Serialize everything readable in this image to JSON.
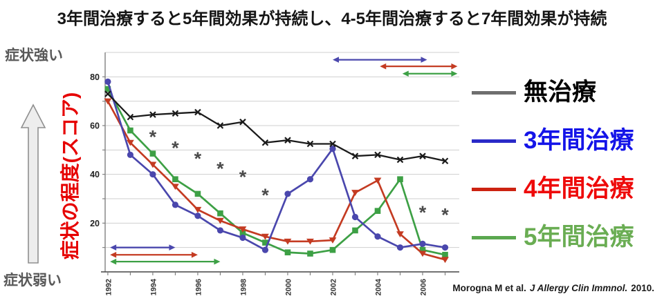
{
  "title": "3年間治療すると5年間効果が持続し、4-5年間治療すると7年間効果が持続",
  "y_axis_annotation": {
    "top": "症状強い",
    "bottom": "症状弱い",
    "label": "症状の程度(スコア)",
    "label_color": "#e60000"
  },
  "legend": {
    "items": [
      {
        "label": "無治療",
        "text_color": "#000000",
        "line_color": "#6e6e6e"
      },
      {
        "label": "3年間治療",
        "text_color": "#1414e8",
        "line_color": "#2a2ac8"
      },
      {
        "label": "4年間治療",
        "text_color": "#ee0a0a",
        "line_color": "#cc2211"
      },
      {
        "label": "5年間治療",
        "text_color": "#6aad53",
        "line_color": "#5aa84f"
      }
    ]
  },
  "citation": {
    "authors": "Morogna M et al.",
    "journal": "J Allergy Clin Immnol.",
    "year": "2010."
  },
  "chart_data": {
    "type": "line",
    "x": [
      1992,
      1993,
      1994,
      1995,
      1996,
      1997,
      1998,
      1999,
      2000,
      2001,
      2002,
      2003,
      2004,
      2005,
      2006,
      2007
    ],
    "x_labeled_ticks": [
      1992,
      1994,
      1996,
      1998,
      2000,
      2002,
      2004,
      2006
    ],
    "ylim": [
      0,
      90
    ],
    "y_tick_labels": [
      20,
      40,
      60,
      80
    ],
    "gridline_step": 10,
    "grid_color": "#cfcfcf",
    "series": [
      {
        "id": "no-treatment",
        "name": "無治療",
        "color": "#1a1a1a",
        "marker": "x",
        "values": [
          73,
          63.5,
          64.5,
          65,
          65.5,
          60,
          61.5,
          53,
          54,
          52.5,
          52.5,
          47.5,
          48,
          46,
          47.5,
          45.5
        ]
      },
      {
        "id": "treat-3yr",
        "name": "3年間治療",
        "color": "#4a47ad",
        "marker": "circle",
        "values": [
          78,
          48,
          40,
          27.5,
          23,
          17,
          14,
          9,
          32,
          38,
          50.5,
          22.5,
          14.5,
          10,
          11.5,
          10
        ]
      },
      {
        "id": "treat-4yr",
        "name": "4年間治療",
        "color": "#c43b22",
        "marker": "triangle-down",
        "values": [
          70,
          53,
          44,
          35,
          25.5,
          21,
          17.5,
          14.5,
          12.5,
          12.5,
          13,
          32.5,
          37.5,
          15.5,
          7.5,
          5
        ]
      },
      {
        "id": "treat-5yr",
        "name": "5年間治療",
        "color": "#3da045",
        "marker": "square",
        "values": [
          75,
          58,
          48.5,
          38,
          32,
          24,
          16,
          12,
          8,
          7.5,
          9,
          17,
          25,
          38,
          9,
          7
        ]
      }
    ],
    "significance_asterisks": [
      {
        "x": 1994,
        "y": 56.5
      },
      {
        "x": 1995,
        "y": 52
      },
      {
        "x": 1996,
        "y": 47.5
      },
      {
        "x": 1997,
        "y": 43.5
      },
      {
        "x": 1998,
        "y": 40
      },
      {
        "x": 1999,
        "y": 32.5
      },
      {
        "x": 2006,
        "y": 25.5
      },
      {
        "x": 2007,
        "y": 24.5
      }
    ],
    "treatment_duration_arrows": [
      {
        "series": "3年間治療",
        "color": "#4a47ad",
        "x1": 1992.1,
        "x2": 1995,
        "y": 10
      },
      {
        "series": "4年間治療",
        "color": "#c43b22",
        "x1": 1992.1,
        "x2": 1996,
        "y": 7
      },
      {
        "series": "5年間治療",
        "color": "#3da045",
        "x1": 1992.1,
        "x2": 1997,
        "y": 4.2
      }
    ],
    "effect_persistence_arrows": [
      {
        "series": "3年間治療",
        "color": "#4a47ad",
        "x1": 2002,
        "x2": 2006.2,
        "y": 87
      },
      {
        "series": "4年間治療",
        "color": "#c43b22",
        "x1": 2004.1,
        "x2": 2007.55,
        "y": 84.3
      },
      {
        "series": "5年間治療",
        "color": "#3da045",
        "x1": 2005.1,
        "x2": 2007.55,
        "y": 81.3
      }
    ]
  }
}
